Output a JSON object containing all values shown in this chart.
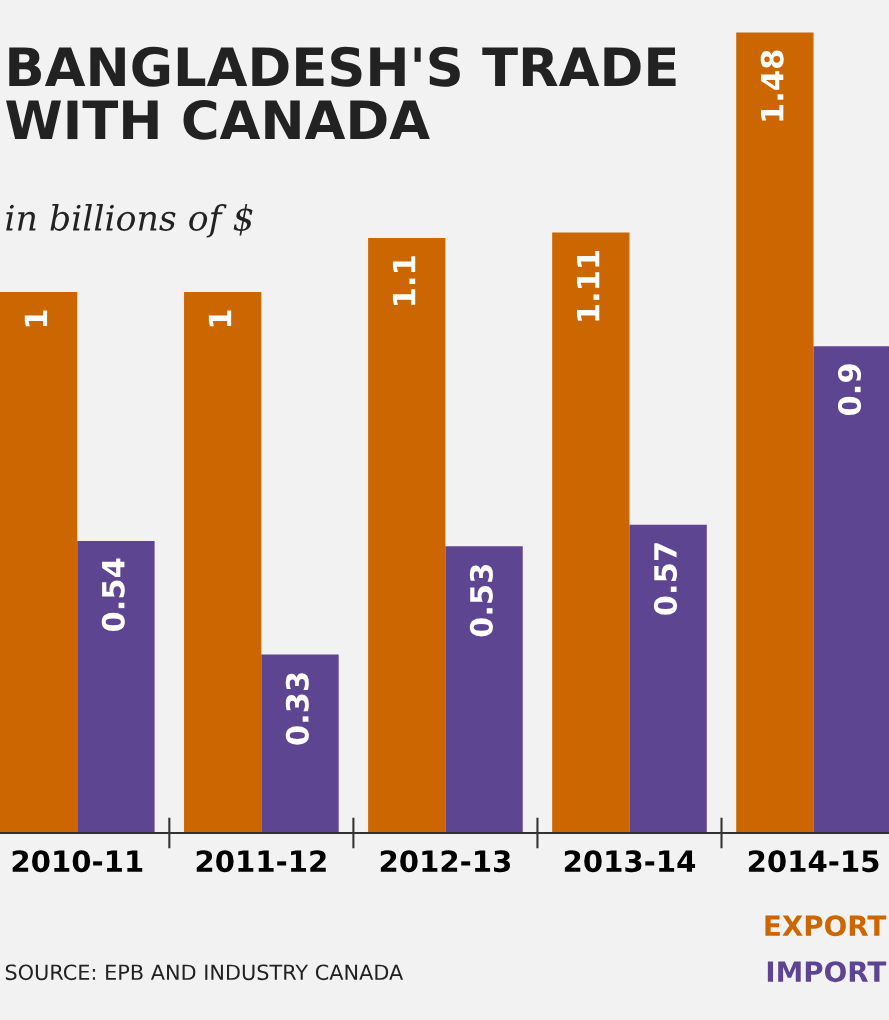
{
  "chart_data": {
    "type": "bar",
    "title": "BANGLADESH'S TRADE\nWITH CANADA",
    "subtitle": "in billions of $",
    "categories": [
      "2010-11",
      "2011-12",
      "2012-13",
      "2013-14",
      "2014-15"
    ],
    "series": [
      {
        "name": "EXPORT",
        "color": "#cc6600",
        "values": [
          1,
          1,
          1.1,
          1.11,
          1.48
        ]
      },
      {
        "name": "IMPORT",
        "color": "#5e4591",
        "values": [
          0.54,
          0.33,
          0.53,
          0.57,
          0.9
        ]
      }
    ],
    "ylim": [
      0,
      1.54
    ],
    "tick_labels": "x",
    "data_labels": true,
    "grid": false,
    "legend": "bottom right",
    "annotations": [
      "SOURCE: EPB AND INDUSTRY CANADA"
    ]
  }
}
